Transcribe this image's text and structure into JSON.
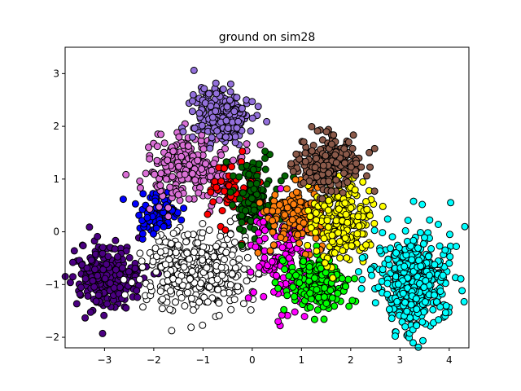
{
  "chart_data": {
    "type": "scatter",
    "title": "ground on sim28",
    "xlabel": "",
    "ylabel": "",
    "xlim": [
      -3.8,
      4.4
    ],
    "ylim": [
      -2.2,
      3.5
    ],
    "xticks": [
      -3,
      -2,
      -1,
      0,
      1,
      2,
      3,
      4
    ],
    "yticks": [
      -2,
      -1,
      0,
      1,
      2,
      3
    ],
    "grid": false,
    "legend": "none",
    "marker_edge_color": "#000000",
    "clusters": [
      {
        "color": "#4b0082",
        "center": [
          -2.95,
          -0.85
        ],
        "spread": [
          0.32,
          0.32
        ],
        "count": 240
      },
      {
        "color": "#ffffff",
        "center": [
          -1.05,
          -0.75
        ],
        "spread": [
          0.55,
          0.38
        ],
        "count": 420
      },
      {
        "color": "#0000ff",
        "center": [
          -1.95,
          0.35
        ],
        "spread": [
          0.24,
          0.2
        ],
        "count": 90
      },
      {
        "color": "#da70d6",
        "center": [
          -1.3,
          1.2
        ],
        "spread": [
          0.45,
          0.3
        ],
        "count": 260
      },
      {
        "color": "#9370db",
        "center": [
          -0.65,
          2.25
        ],
        "spread": [
          0.33,
          0.27
        ],
        "count": 220
      },
      {
        "color": "#ff0000",
        "center": [
          -0.25,
          0.75
        ],
        "spread": [
          0.26,
          0.26
        ],
        "count": 80
      },
      {
        "color": "#006400",
        "center": [
          0.05,
          0.55
        ],
        "spread": [
          0.24,
          0.36
        ],
        "count": 130
      },
      {
        "color": "#ff00ff",
        "center": [
          0.65,
          -0.45
        ],
        "spread": [
          0.32,
          0.52
        ],
        "count": 150
      },
      {
        "color": "#ff7f0e",
        "center": [
          0.95,
          0.3
        ],
        "spread": [
          0.32,
          0.25
        ],
        "count": 150
      },
      {
        "color": "#00ff00",
        "center": [
          1.35,
          -0.95
        ],
        "spread": [
          0.3,
          0.26
        ],
        "count": 210
      },
      {
        "color": "#ffff00",
        "center": [
          1.8,
          0.25
        ],
        "spread": [
          0.3,
          0.42
        ],
        "count": 230
      },
      {
        "color": "#8b5a4a",
        "center": [
          1.55,
          1.3
        ],
        "spread": [
          0.33,
          0.25
        ],
        "count": 220
      },
      {
        "color": "#00ffff",
        "center": [
          3.3,
          -0.9
        ],
        "spread": [
          0.35,
          0.45
        ],
        "count": 480
      }
    ]
  }
}
